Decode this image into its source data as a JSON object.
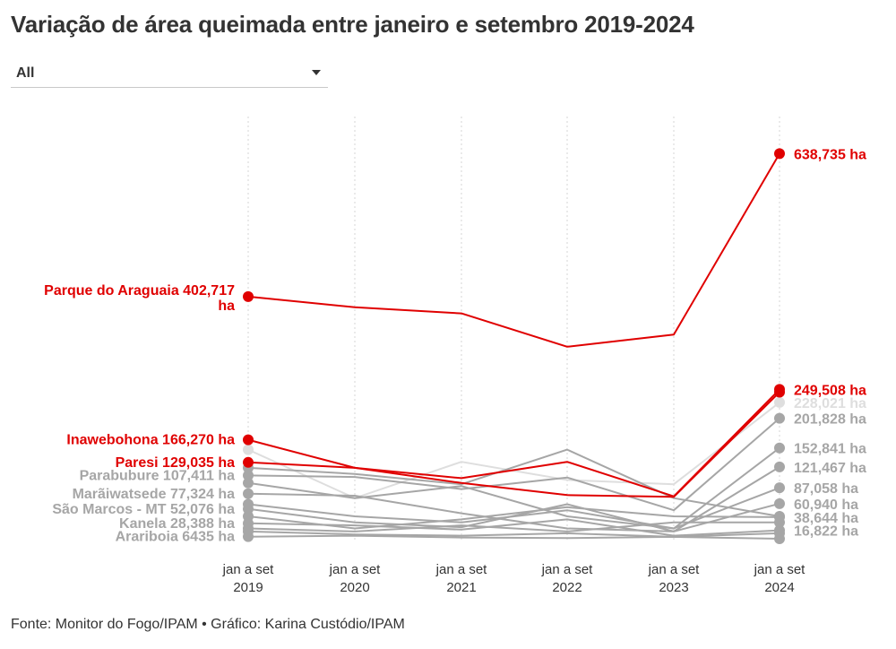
{
  "title": "Variação de área queimada entre janeiro e setembro 2019-2024",
  "filter": {
    "selected": "All"
  },
  "footer": "Fonte: Monitor do Fogo/IPAM • Gráfico: Karina Custódio/IPAM",
  "icons": {
    "dropdown": "chevron-down-icon"
  },
  "colors": {
    "highlight": "#e00000",
    "muted": "#a6a6a6",
    "faint": "#dedede",
    "grid": "#d6d6d6",
    "text": "#333333"
  },
  "chart_data": {
    "type": "line",
    "categories": [
      [
        "jan a set",
        "2019"
      ],
      [
        "jan a set",
        "2020"
      ],
      [
        "jan a set",
        "2021"
      ],
      [
        "jan a set",
        "2022"
      ],
      [
        "jan a set",
        "2023"
      ],
      [
        "jan a set",
        "2024"
      ]
    ],
    "ylim": [
      0,
      700000
    ],
    "grid": "vertical dotted",
    "series": [
      {
        "name": "Parque do Araguaia",
        "values": [
          402717,
          385000,
          375000,
          320000,
          340000,
          638735
        ],
        "style": "highlight",
        "startLabel": "Parque do Araguaia 402,717 ha",
        "endLabel": "638,735 ha"
      },
      {
        "name": "Inawebohona",
        "values": [
          166270,
          120000,
          95000,
          75000,
          72000,
          245000
        ],
        "style": "highlight",
        "startLabel": "Inawebohona 166,270 ha",
        "endLabel": ""
      },
      {
        "name": "Paresi",
        "values": [
          129035,
          120000,
          103000,
          130000,
          73000,
          249508
        ],
        "style": "highlight",
        "startLabel": "Paresi 129,035 ha",
        "endLabel": "249,508 ha"
      },
      {
        "name": "",
        "values": [
          150000,
          70000,
          130000,
          100000,
          93000,
          228021
        ],
        "style": "faint",
        "startLabel": "",
        "endLabel": "228,021 ha"
      },
      {
        "name": "",
        "values": [
          120000,
          110000,
          93000,
          150000,
          70000,
          40000
        ],
        "style": "muted",
        "startLabel": "",
        "endLabel": ""
      },
      {
        "name": "Parabubure",
        "values": [
          107411,
          105000,
          85000,
          104000,
          50000,
          201828
        ],
        "style": "muted",
        "startLabel": "Parabubure 107,411 ha",
        "endLabel": "201,828 ha"
      },
      {
        "name": "",
        "values": [
          95000,
          70000,
          90000,
          40000,
          20000,
          152841
        ],
        "style": "muted",
        "startLabel": "",
        "endLabel": "152,841 ha"
      },
      {
        "name": "Marãiwatsede",
        "values": [
          77324,
          74000,
          45000,
          20000,
          15000,
          121467
        ],
        "style": "muted",
        "startLabel": "Marãiwatsede 77,324 ha",
        "endLabel": "121,467 ha"
      },
      {
        "name": "",
        "values": [
          60000,
          40000,
          30000,
          50000,
          20000,
          87058
        ],
        "style": "muted",
        "startLabel": "",
        "endLabel": "87,058 ha"
      },
      {
        "name": "São Marcos - MT",
        "values": [
          52076,
          30000,
          22000,
          60000,
          15000,
          60940
        ],
        "style": "muted",
        "startLabel": "São Marcos - MT 52,076 ha",
        "endLabel": "60,940 ha"
      },
      {
        "name": "",
        "values": [
          40000,
          20000,
          35000,
          55000,
          40000,
          38644
        ],
        "style": "muted",
        "startLabel": "",
        "endLabel": "38,644 ha"
      },
      {
        "name": "Kanela",
        "values": [
          28388,
          25000,
          18000,
          35000,
          8000,
          16822
        ],
        "style": "muted",
        "startLabel": "Kanela 28,388 ha",
        "endLabel": "16,822 ha"
      },
      {
        "name": "",
        "values": [
          20000,
          15000,
          25000,
          15000,
          30000,
          30000
        ],
        "style": "muted",
        "startLabel": "",
        "endLabel": ""
      },
      {
        "name": "",
        "values": [
          15000,
          10000,
          8000,
          12000,
          6000,
          12000
        ],
        "style": "muted",
        "startLabel": "",
        "endLabel": ""
      },
      {
        "name": "Arariboia",
        "values": [
          6435,
          8000,
          5000,
          4000,
          6000,
          3000
        ],
        "style": "muted",
        "startLabel": "Arariboia 6435 ha",
        "endLabel": ""
      }
    ]
  }
}
